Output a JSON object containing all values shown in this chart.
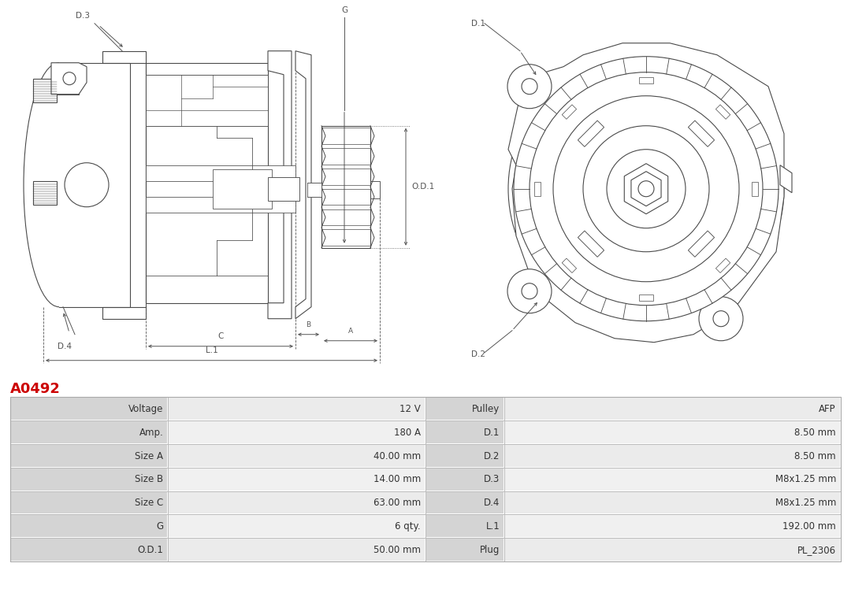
{
  "title": "A0492",
  "title_color": "#cc0000",
  "bg_color": "#ffffff",
  "line_color": "#4a4a4a",
  "dim_color": "#555555",
  "table_rows": [
    [
      "Voltage",
      "12 V",
      "Pulley",
      "AFP"
    ],
    [
      "Amp.",
      "180 A",
      "D.1",
      "8.50 mm"
    ],
    [
      "Size A",
      "40.00 mm",
      "D.2",
      "8.50 mm"
    ],
    [
      "Size B",
      "14.00 mm",
      "D.3",
      "M8x1.25 mm"
    ],
    [
      "Size C",
      "63.00 mm",
      "D.4",
      "M8x1.25 mm"
    ],
    [
      "G",
      "6 qty.",
      "L.1",
      "192.00 mm"
    ],
    [
      "O.D.1",
      "50.00 mm",
      "Plug",
      "PL_2306"
    ]
  ],
  "font_size": 8.5,
  "text_color": "#333333",
  "label_color": "#d9d9d9",
  "value_bg_even": "#ebebeb",
  "value_bg_odd": "#f5f5f5"
}
